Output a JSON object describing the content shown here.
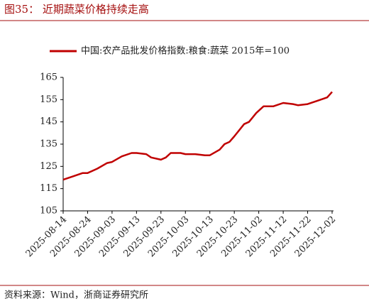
{
  "chart_data": {
    "type": "line",
    "title": "图35：  近期蔬菜价格持续走高",
    "source": "资料来源：Wind，浙商证券研究所",
    "x": [
      "2025-08-14",
      "2025-08-18",
      "2025-08-22",
      "2025-08-24",
      "2025-08-28",
      "2025-09-01",
      "2025-09-03",
      "2025-09-07",
      "2025-09-11",
      "2025-09-13",
      "2025-09-17",
      "2025-09-19",
      "2025-09-23",
      "2025-09-25",
      "2025-09-27",
      "2025-10-01",
      "2025-10-03",
      "2025-10-07",
      "2025-10-11",
      "2025-10-13",
      "2025-10-17",
      "2025-10-19",
      "2025-10-21",
      "2025-10-23",
      "2025-10-27",
      "2025-10-29",
      "2025-11-01",
      "2025-11-04",
      "2025-11-08",
      "2025-11-12",
      "2025-11-16",
      "2025-11-18",
      "2025-11-22",
      "2025-11-26",
      "2025-11-30",
      "2025-12-02"
    ],
    "series": [
      {
        "name": "中国:农产品批发价格指数:粮食:蔬菜 2015年=100",
        "color": "#c00000",
        "values": [
          119,
          120.5,
          122,
          122,
          124,
          126.5,
          127,
          129.5,
          131,
          131,
          130.5,
          129,
          128,
          129,
          131,
          131,
          130.5,
          130.5,
          130,
          130,
          132.5,
          135,
          136,
          138.5,
          144,
          145,
          149,
          152,
          152,
          153.5,
          153,
          152.5,
          153,
          154.5,
          156,
          158.5
        ]
      }
    ],
    "xlim": [
      "2025-08-14",
      "2025-12-02"
    ],
    "xticks": [
      "2025-08-14",
      "2025-08-24",
      "2025-09-03",
      "2025-09-13",
      "2025-09-23",
      "2025-10-03",
      "2025-10-13",
      "2025-10-23",
      "2025-11-02",
      "2025-11-12",
      "2025-11-22",
      "2025-12-02"
    ],
    "ylim": [
      105,
      165
    ],
    "yticks": [
      105,
      115,
      125,
      135,
      145,
      155,
      165
    ],
    "grid": false
  }
}
